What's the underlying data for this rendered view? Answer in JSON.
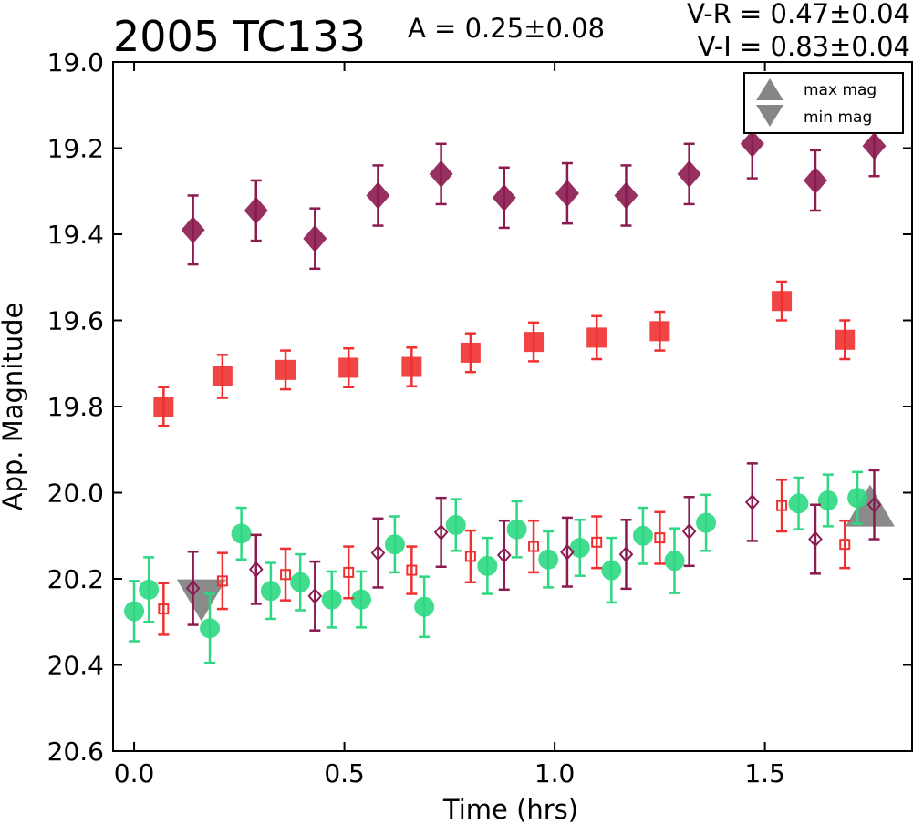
{
  "chart_data": {
    "type": "scatter",
    "title": "2005 TC133",
    "amplitude_label": "A  = 0.25±0.08",
    "color_labels": [
      "V-R = 0.47±0.04",
      "V-I  = 0.83±0.04"
    ],
    "xlabel": "Time (hrs)",
    "ylabel": "App. Magnitude",
    "xlim": [
      -0.05,
      1.85
    ],
    "ylim": [
      20.6,
      19.0
    ],
    "y_inverted": true,
    "x_ticks": [
      "0.0",
      "0.5",
      "1.0",
      "1.5"
    ],
    "x_tick_values": [
      0.0,
      0.5,
      1.0,
      1.5
    ],
    "y_ticks": [
      "19.0",
      "19.2",
      "19.4",
      "19.6",
      "19.8",
      "20.0",
      "20.2",
      "20.4",
      "20.6"
    ],
    "y_tick_values": [
      19.0,
      19.2,
      19.4,
      19.6,
      19.8,
      20.0,
      20.2,
      20.4,
      20.6
    ],
    "grid": false,
    "legend": {
      "placement": "top-right",
      "entries": [
        {
          "label": "max mag",
          "marker": "triangle-up",
          "color": "#808080"
        },
        {
          "label": "min mag",
          "marker": "triangle-down",
          "color": "#808080"
        }
      ]
    },
    "series": [
      {
        "marker": "diamond-filled",
        "color": "#8b1a50",
        "points": [
          {
            "x": 0.14,
            "y": 19.39,
            "err": 0.08
          },
          {
            "x": 0.29,
            "y": 19.345,
            "err": 0.07
          },
          {
            "x": 0.43,
            "y": 19.41,
            "err": 0.07
          },
          {
            "x": 0.58,
            "y": 19.31,
            "err": 0.07
          },
          {
            "x": 0.73,
            "y": 19.26,
            "err": 0.07
          },
          {
            "x": 0.88,
            "y": 19.315,
            "err": 0.07
          },
          {
            "x": 1.03,
            "y": 19.305,
            "err": 0.07
          },
          {
            "x": 1.17,
            "y": 19.31,
            "err": 0.07
          },
          {
            "x": 1.32,
            "y": 19.26,
            "err": 0.07
          },
          {
            "x": 1.47,
            "y": 19.19,
            "err": 0.08
          },
          {
            "x": 1.62,
            "y": 19.275,
            "err": 0.07
          },
          {
            "x": 1.76,
            "y": 19.195,
            "err": 0.07
          }
        ]
      },
      {
        "marker": "square-filled",
        "color": "#f03030",
        "points": [
          {
            "x": 0.07,
            "y": 19.8,
            "err": 0.045
          },
          {
            "x": 0.21,
            "y": 19.73,
            "err": 0.05
          },
          {
            "x": 0.36,
            "y": 19.715,
            "err": 0.045
          },
          {
            "x": 0.51,
            "y": 19.71,
            "err": 0.045
          },
          {
            "x": 0.66,
            "y": 19.708,
            "err": 0.045
          },
          {
            "x": 0.8,
            "y": 19.675,
            "err": 0.045
          },
          {
            "x": 0.95,
            "y": 19.65,
            "err": 0.045
          },
          {
            "x": 1.1,
            "y": 19.64,
            "err": 0.05
          },
          {
            "x": 1.25,
            "y": 19.625,
            "err": 0.045
          },
          {
            "x": 1.54,
            "y": 19.555,
            "err": 0.045
          },
          {
            "x": 1.69,
            "y": 19.645,
            "err": 0.045
          }
        ]
      },
      {
        "marker": "circle-filled",
        "color": "#2ed882",
        "points": [
          {
            "x": 0.0,
            "y": 20.275,
            "err": 0.07
          },
          {
            "x": 0.035,
            "y": 20.225,
            "err": 0.075
          },
          {
            "x": 0.18,
            "y": 20.315,
            "err": 0.08
          },
          {
            "x": 0.255,
            "y": 20.095,
            "err": 0.06
          },
          {
            "x": 0.325,
            "y": 20.228,
            "err": 0.065
          },
          {
            "x": 0.395,
            "y": 20.208,
            "err": 0.065
          },
          {
            "x": 0.47,
            "y": 20.248,
            "err": 0.065
          },
          {
            "x": 0.54,
            "y": 20.248,
            "err": 0.065
          },
          {
            "x": 0.62,
            "y": 20.12,
            "err": 0.065
          },
          {
            "x": 0.69,
            "y": 20.265,
            "err": 0.07
          },
          {
            "x": 0.765,
            "y": 20.075,
            "err": 0.06
          },
          {
            "x": 0.84,
            "y": 20.17,
            "err": 0.065
          },
          {
            "x": 0.91,
            "y": 20.085,
            "err": 0.065
          },
          {
            "x": 0.985,
            "y": 20.155,
            "err": 0.065
          },
          {
            "x": 1.06,
            "y": 20.128,
            "err": 0.065
          },
          {
            "x": 1.135,
            "y": 20.18,
            "err": 0.075
          },
          {
            "x": 1.21,
            "y": 20.1,
            "err": 0.065
          },
          {
            "x": 1.285,
            "y": 20.158,
            "err": 0.075
          },
          {
            "x": 1.36,
            "y": 20.07,
            "err": 0.065
          },
          {
            "x": 1.58,
            "y": 20.025,
            "err": 0.06
          },
          {
            "x": 1.65,
            "y": 20.018,
            "err": 0.06
          },
          {
            "x": 1.72,
            "y": 20.012,
            "err": 0.06
          }
        ]
      },
      {
        "marker": "square-open",
        "color": "#f03030",
        "points": [
          {
            "x": 0.07,
            "y": 20.27,
            "err": 0.06
          },
          {
            "x": 0.21,
            "y": 20.205,
            "err": 0.065
          },
          {
            "x": 0.36,
            "y": 20.19,
            "err": 0.06
          },
          {
            "x": 0.51,
            "y": 20.185,
            "err": 0.06
          },
          {
            "x": 0.66,
            "y": 20.18,
            "err": 0.055
          },
          {
            "x": 0.8,
            "y": 20.148,
            "err": 0.06
          },
          {
            "x": 0.95,
            "y": 20.125,
            "err": 0.06
          },
          {
            "x": 1.1,
            "y": 20.115,
            "err": 0.06
          },
          {
            "x": 1.25,
            "y": 20.105,
            "err": 0.06
          },
          {
            "x": 1.54,
            "y": 20.03,
            "err": 0.06
          },
          {
            "x": 1.69,
            "y": 20.12,
            "err": 0.055
          }
        ]
      },
      {
        "marker": "diamond-open",
        "color": "#8b1a50",
        "points": [
          {
            "x": 0.14,
            "y": 20.222,
            "err": 0.085
          },
          {
            "x": 0.29,
            "y": 20.178,
            "err": 0.08
          },
          {
            "x": 0.43,
            "y": 20.24,
            "err": 0.08
          },
          {
            "x": 0.58,
            "y": 20.14,
            "err": 0.08
          },
          {
            "x": 0.73,
            "y": 20.092,
            "err": 0.08
          },
          {
            "x": 0.88,
            "y": 20.145,
            "err": 0.08
          },
          {
            "x": 1.03,
            "y": 20.138,
            "err": 0.08
          },
          {
            "x": 1.17,
            "y": 20.143,
            "err": 0.08
          },
          {
            "x": 1.32,
            "y": 20.09,
            "err": 0.08
          },
          {
            "x": 1.47,
            "y": 20.022,
            "err": 0.09
          },
          {
            "x": 1.62,
            "y": 20.108,
            "err": 0.08
          },
          {
            "x": 1.76,
            "y": 20.028,
            "err": 0.08
          }
        ]
      }
    ],
    "extrema": [
      {
        "marker": "triangle-down",
        "x": 0.16,
        "y": 20.25,
        "color": "#808080"
      },
      {
        "marker": "triangle-up",
        "x": 1.75,
        "y": 20.03,
        "color": "#808080"
      }
    ]
  }
}
